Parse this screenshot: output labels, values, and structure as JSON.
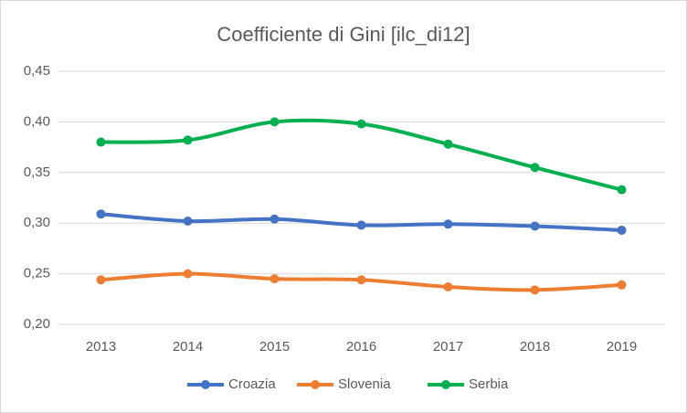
{
  "chart_data": {
    "type": "line",
    "title": "Coefficiente di Gini [ilc_di12]",
    "categories": [
      "2013",
      "2014",
      "2015",
      "2016",
      "2017",
      "2018",
      "2019"
    ],
    "series": [
      {
        "name": "Croazia",
        "color": "#4472c4",
        "values": [
          0.309,
          0.302,
          0.304,
          0.298,
          0.299,
          0.297,
          0.293
        ]
      },
      {
        "name": "Slovenia",
        "color": "#ed7d31",
        "values": [
          0.244,
          0.25,
          0.245,
          0.244,
          0.237,
          0.234,
          0.239
        ]
      },
      {
        "name": "Serbia",
        "color": "#00b050",
        "values": [
          0.38,
          0.382,
          0.4,
          0.398,
          0.378,
          0.355,
          0.333
        ]
      }
    ],
    "ylim": [
      0.2,
      0.45
    ],
    "yticks": [
      {
        "value": 0.2,
        "label": "0,20"
      },
      {
        "value": 0.25,
        "label": "0,25"
      },
      {
        "value": 0.3,
        "label": "0,30"
      },
      {
        "value": 0.35,
        "label": "0,35"
      },
      {
        "value": 0.4,
        "label": "0,40"
      },
      {
        "value": 0.45,
        "label": "0,45"
      }
    ],
    "grid": true,
    "smooth": true,
    "legend": "bottom"
  }
}
